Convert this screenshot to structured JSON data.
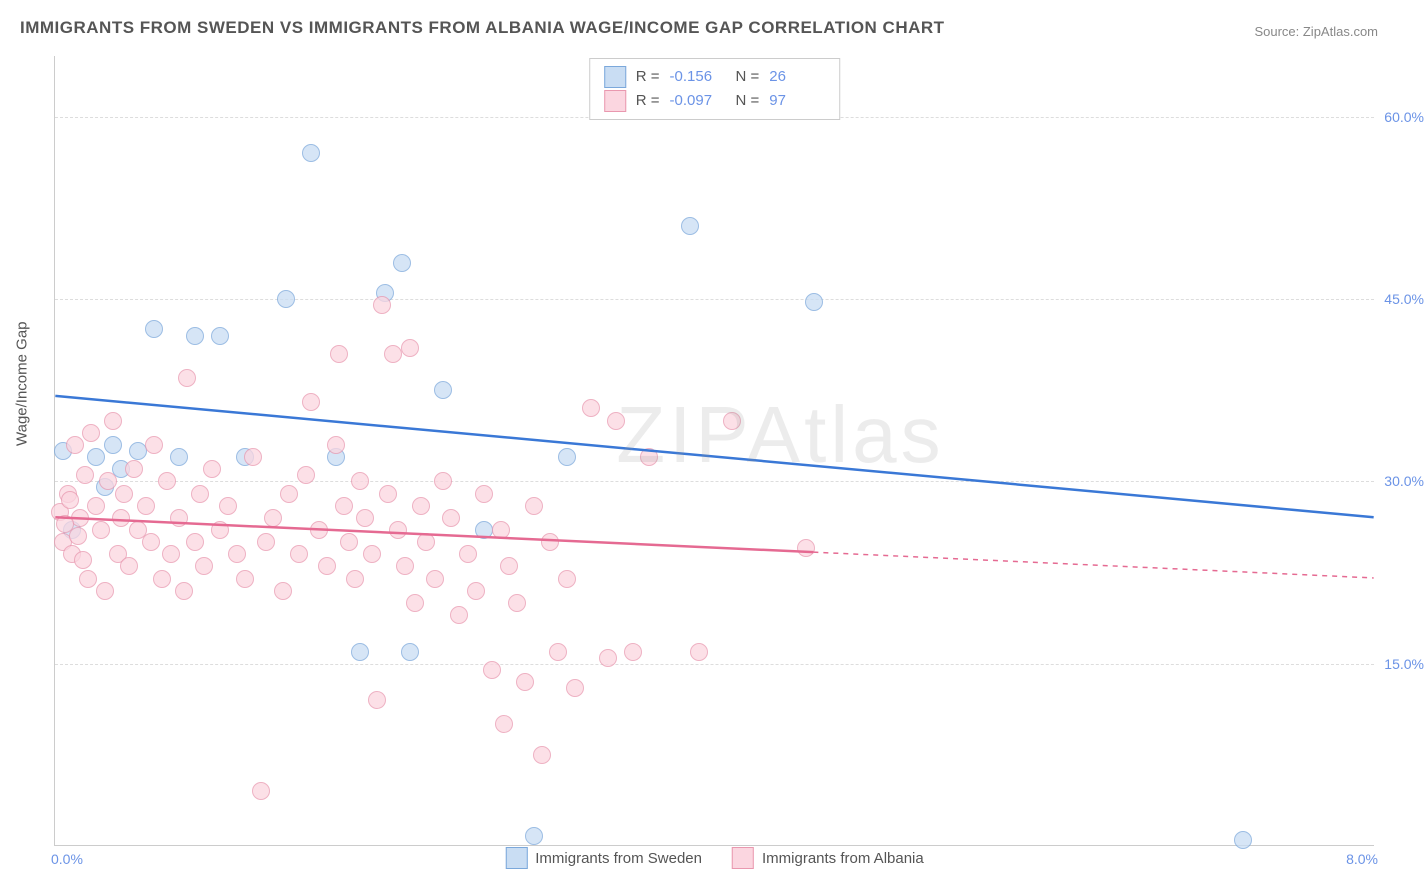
{
  "title": "IMMIGRANTS FROM SWEDEN VS IMMIGRANTS FROM ALBANIA WAGE/INCOME GAP CORRELATION CHART",
  "source": "Source: ZipAtlas.com",
  "ylabel": "Wage/Income Gap",
  "watermark": "ZIPAtlas",
  "chart": {
    "type": "scatter",
    "xlim": [
      0.0,
      8.0
    ],
    "ylim": [
      0.0,
      65.0
    ],
    "xtick_labels": [
      "0.0%",
      "8.0%"
    ],
    "ytick_values": [
      15.0,
      30.0,
      45.0,
      60.0
    ],
    "ytick_labels": [
      "15.0%",
      "30.0%",
      "45.0%",
      "60.0%"
    ],
    "grid_color": "#dddddd",
    "background_color": "#ffffff",
    "axis_color": "#cccccc",
    "tick_label_color": "#6b93e6",
    "marker_size": 18,
    "series": [
      {
        "name": "Immigrants from Sweden",
        "fill": "#c9ddf3",
        "stroke": "#7ba8db",
        "line_color": "#3a78d6",
        "R": "-0.156",
        "N": "26",
        "trend": {
          "y_at_xmin": 37.0,
          "y_at_xmax": 27.0,
          "solid_until_x": 8.0
        },
        "points": [
          [
            0.05,
            32.5
          ],
          [
            0.1,
            26.0
          ],
          [
            0.25,
            32.0
          ],
          [
            0.3,
            29.5
          ],
          [
            0.35,
            33.0
          ],
          [
            0.4,
            31.0
          ],
          [
            0.6,
            42.5
          ],
          [
            0.75,
            32.0
          ],
          [
            0.85,
            42.0
          ],
          [
            1.0,
            42.0
          ],
          [
            1.15,
            32.0
          ],
          [
            1.4,
            45.0
          ],
          [
            1.55,
            57.0
          ],
          [
            1.7,
            32.0
          ],
          [
            1.85,
            16.0
          ],
          [
            2.0,
            45.5
          ],
          [
            2.1,
            48.0
          ],
          [
            2.15,
            16.0
          ],
          [
            2.35,
            37.5
          ],
          [
            2.6,
            26.0
          ],
          [
            2.9,
            0.8
          ],
          [
            3.1,
            32.0
          ],
          [
            3.85,
            51.0
          ],
          [
            4.6,
            44.8
          ],
          [
            7.2,
            0.5
          ],
          [
            0.5,
            32.5
          ]
        ]
      },
      {
        "name": "Immigrants from Albania",
        "fill": "#fbd6e0",
        "stroke": "#e998af",
        "line_color": "#e56a92",
        "R": "-0.097",
        "N": "97",
        "trend": {
          "y_at_xmin": 27.0,
          "y_at_xmax": 22.0,
          "solid_until_x": 4.6
        },
        "points": [
          [
            0.03,
            27.5
          ],
          [
            0.05,
            25.0
          ],
          [
            0.08,
            29.0
          ],
          [
            0.1,
            24.0
          ],
          [
            0.12,
            33.0
          ],
          [
            0.15,
            27.0
          ],
          [
            0.18,
            30.5
          ],
          [
            0.2,
            22.0
          ],
          [
            0.22,
            34.0
          ],
          [
            0.25,
            28.0
          ],
          [
            0.28,
            26.0
          ],
          [
            0.3,
            21.0
          ],
          [
            0.32,
            30.0
          ],
          [
            0.35,
            35.0
          ],
          [
            0.38,
            24.0
          ],
          [
            0.4,
            27.0
          ],
          [
            0.42,
            29.0
          ],
          [
            0.45,
            23.0
          ],
          [
            0.48,
            31.0
          ],
          [
            0.5,
            26.0
          ],
          [
            0.55,
            28.0
          ],
          [
            0.58,
            25.0
          ],
          [
            0.6,
            33.0
          ],
          [
            0.65,
            22.0
          ],
          [
            0.68,
            30.0
          ],
          [
            0.7,
            24.0
          ],
          [
            0.75,
            27.0
          ],
          [
            0.78,
            21.0
          ],
          [
            0.8,
            38.5
          ],
          [
            0.85,
            25.0
          ],
          [
            0.88,
            29.0
          ],
          [
            0.9,
            23.0
          ],
          [
            0.95,
            31.0
          ],
          [
            1.0,
            26.0
          ],
          [
            1.05,
            28.0
          ],
          [
            1.1,
            24.0
          ],
          [
            1.15,
            22.0
          ],
          [
            1.2,
            32.0
          ],
          [
            1.25,
            4.5
          ],
          [
            1.28,
            25.0
          ],
          [
            1.32,
            27.0
          ],
          [
            1.38,
            21.0
          ],
          [
            1.42,
            29.0
          ],
          [
            1.48,
            24.0
          ],
          [
            1.52,
            30.5
          ],
          [
            1.55,
            36.5
          ],
          [
            1.6,
            26.0
          ],
          [
            1.65,
            23.0
          ],
          [
            1.7,
            33.0
          ],
          [
            1.72,
            40.5
          ],
          [
            1.75,
            28.0
          ],
          [
            1.78,
            25.0
          ],
          [
            1.82,
            22.0
          ],
          [
            1.85,
            30.0
          ],
          [
            1.88,
            27.0
          ],
          [
            1.92,
            24.0
          ],
          [
            1.95,
            12.0
          ],
          [
            1.98,
            44.5
          ],
          [
            2.02,
            29.0
          ],
          [
            2.05,
            40.5
          ],
          [
            2.08,
            26.0
          ],
          [
            2.12,
            23.0
          ],
          [
            2.15,
            41.0
          ],
          [
            2.18,
            20.0
          ],
          [
            2.22,
            28.0
          ],
          [
            2.25,
            25.0
          ],
          [
            2.3,
            22.0
          ],
          [
            2.35,
            30.0
          ],
          [
            2.4,
            27.0
          ],
          [
            2.45,
            19.0
          ],
          [
            2.5,
            24.0
          ],
          [
            2.55,
            21.0
          ],
          [
            2.6,
            29.0
          ],
          [
            2.65,
            14.5
          ],
          [
            2.7,
            26.0
          ],
          [
            2.72,
            10.0
          ],
          [
            2.75,
            23.0
          ],
          [
            2.8,
            20.0
          ],
          [
            2.85,
            13.5
          ],
          [
            2.9,
            28.0
          ],
          [
            2.95,
            7.5
          ],
          [
            3.0,
            25.0
          ],
          [
            3.05,
            16.0
          ],
          [
            3.1,
            22.0
          ],
          [
            3.15,
            13.0
          ],
          [
            3.25,
            36.0
          ],
          [
            3.35,
            15.5
          ],
          [
            3.4,
            35.0
          ],
          [
            3.5,
            16.0
          ],
          [
            3.6,
            32.0
          ],
          [
            3.9,
            16.0
          ],
          [
            4.1,
            35.0
          ],
          [
            4.55,
            24.5
          ],
          [
            0.06,
            26.5
          ],
          [
            0.09,
            28.5
          ],
          [
            0.14,
            25.5
          ],
          [
            0.17,
            23.5
          ]
        ]
      }
    ]
  },
  "legend_top_labels": {
    "R": "R =",
    "N": "N ="
  },
  "legend_bottom": [
    "Immigrants from Sweden",
    "Immigrants from Albania"
  ]
}
